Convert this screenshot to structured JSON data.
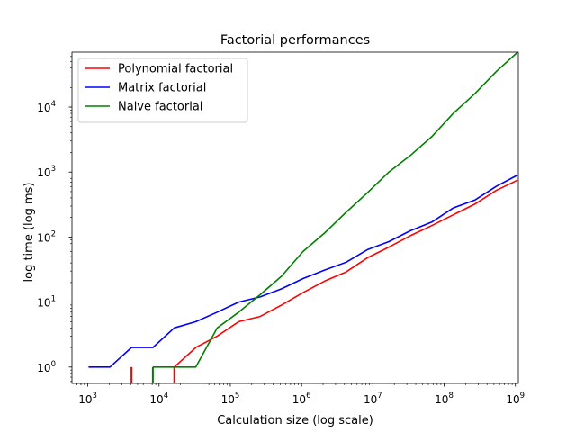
{
  "chart_data": {
    "type": "line",
    "title": "Factorial performances",
    "xlabel": "Calculation size (log scale)",
    "ylabel": "log time (log ms)",
    "x_scale": "log",
    "y_scale": "log",
    "xlim": [
      600,
      1100000000
    ],
    "ylim": [
      0.56,
      70000
    ],
    "grid": false,
    "legend_position": "top-left",
    "x_ticks": [
      {
        "value": 1000,
        "base": "10",
        "exp": "3"
      },
      {
        "value": 10000,
        "base": "10",
        "exp": "4"
      },
      {
        "value": 100000,
        "base": "10",
        "exp": "5"
      },
      {
        "value": 1000000,
        "base": "10",
        "exp": "6"
      },
      {
        "value": 10000000,
        "base": "10",
        "exp": "7"
      },
      {
        "value": 100000000,
        "base": "10",
        "exp": "8"
      },
      {
        "value": 1000000000,
        "base": "10",
        "exp": "9"
      }
    ],
    "y_ticks": [
      {
        "value": 1,
        "base": "10",
        "exp": "0"
      },
      {
        "value": 10,
        "base": "10",
        "exp": "1"
      },
      {
        "value": 100,
        "base": "10",
        "exp": "2"
      },
      {
        "value": 1000,
        "base": "10",
        "exp": "3"
      },
      {
        "value": 10000,
        "base": "10",
        "exp": "4"
      }
    ],
    "series": [
      {
        "name": "Polynomial factorial",
        "color": "#ff0000",
        "segments": [
          {
            "x": [
              4096
            ],
            "y": [
              1
            ]
          },
          {
            "x": [
              16384,
              32768,
              65536,
              131072,
              262144,
              524288,
              1048576,
              2097152,
              4194304,
              8388608,
              16777216,
              33554432,
              67108864,
              134217728,
              268435456,
              536870912,
              1073741824
            ],
            "y": [
              1,
              2,
              3,
              5,
              6,
              9,
              14,
              21,
              29,
              48,
              70,
              105,
              150,
              220,
              320,
              520,
              750
            ]
          }
        ],
        "drops": [
          4096,
          16384
        ]
      },
      {
        "name": "Matrix factorial",
        "color": "#0000ff",
        "segments": [
          {
            "x": [
              1024,
              2048,
              4096,
              8192,
              16384,
              32768,
              65536,
              131072,
              262144,
              524288,
              1048576,
              2097152,
              4194304,
              8388608,
              16777216,
              33554432,
              67108864,
              134217728,
              268435456,
              536870912,
              1073741824
            ],
            "y": [
              1,
              1,
              2,
              2,
              4,
              5,
              7,
              10,
              12,
              16,
              23,
              31,
              41,
              64,
              85,
              125,
              170,
              280,
              370,
              600,
              900
            ]
          }
        ],
        "drops": []
      },
      {
        "name": "Naive factorial",
        "color": "#008000",
        "segments": [
          {
            "x": [
              8192,
              16384,
              32768,
              65536,
              131072,
              262144,
              524288,
              1048576,
              2097152,
              4194304,
              8388608,
              16777216,
              33554432,
              67108864,
              134217728,
              268435456,
              536870912,
              1073741824
            ],
            "y": [
              1,
              1,
              1,
              4,
              7,
              13,
              25,
              60,
              115,
              240,
              480,
              1000,
              1800,
              3500,
              8000,
              16000,
              35000,
              70000
            ]
          }
        ],
        "drops": [
          8192
        ]
      }
    ]
  }
}
